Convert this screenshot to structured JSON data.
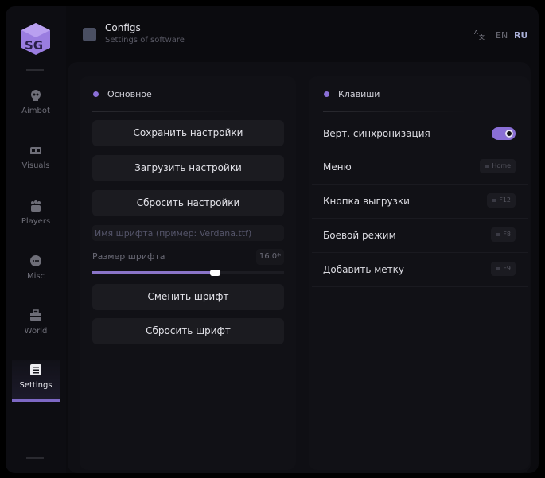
{
  "header": {
    "title": "Configs",
    "subtitle": "Settings of software",
    "icon": "list-icon",
    "lang_icon": "translate-icon",
    "languages": [
      {
        "label": "EN",
        "active": false
      },
      {
        "label": "RU",
        "active": true
      }
    ]
  },
  "sidebar": {
    "logo": "SG",
    "items": [
      {
        "label": "Aimbot",
        "icon": "skull-icon"
      },
      {
        "label": "Visuals",
        "icon": "vr-goggles-icon"
      },
      {
        "label": "Players",
        "icon": "users-icon"
      },
      {
        "label": "Misc",
        "icon": "chat-bubble-icon"
      },
      {
        "label": "World",
        "icon": "briefcase-icon"
      },
      {
        "label": "Settings",
        "icon": "list-icon",
        "active": true
      }
    ]
  },
  "main": {
    "title": "Основное",
    "buttons": [
      "Сохранить настройки",
      "Загрузить настройки",
      "Сбросить настройки"
    ],
    "font_name": {
      "placeholder": "Имя шрифта (пример: Verdana.ttf)",
      "value": ""
    },
    "font_size": {
      "label": "Размер шрифта",
      "value": "16.0*",
      "fill_fraction": 0.64
    },
    "font_buttons": [
      "Сменить шрифт",
      "Сбросить шрифт"
    ]
  },
  "keys": {
    "title": "Клавиши",
    "rows": [
      {
        "label": "Верт. синхронизация",
        "type": "toggle",
        "on": true
      },
      {
        "label": "Меню",
        "key": "Home"
      },
      {
        "label": "Кнопка выгрузки",
        "key": "F12"
      },
      {
        "label": "Боевой режим",
        "key": "F8"
      },
      {
        "label": "Добавить метку",
        "key": "F9"
      }
    ]
  },
  "colors": {
    "accent": "#8a6fd6",
    "background": "#0b0b0f",
    "button": "#1b1b20"
  }
}
